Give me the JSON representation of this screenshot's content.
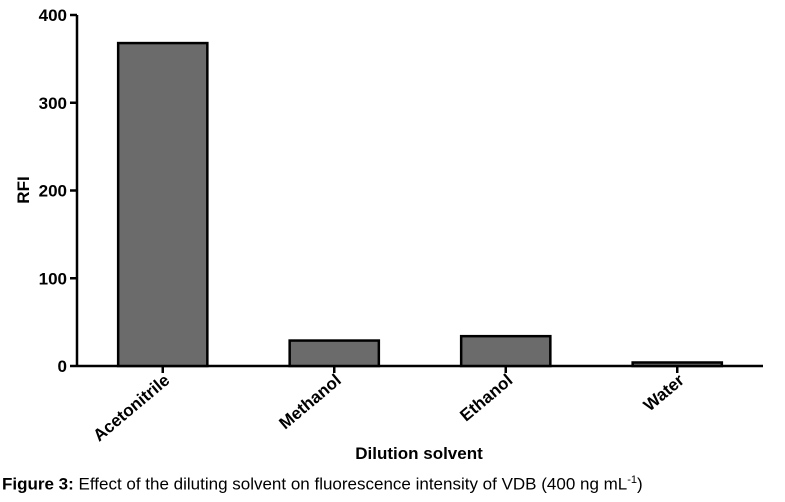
{
  "chart_data": {
    "type": "bar",
    "categories": [
      "Acetonitrile",
      "Methanol",
      "Ethanol",
      "Water"
    ],
    "values": [
      368,
      29,
      34,
      4
    ],
    "xlabel": "Dilution solvent",
    "ylabel": "RFI",
    "ylim": [
      0,
      400
    ],
    "yticks": [
      0,
      100,
      200,
      300,
      400
    ],
    "grid": false,
    "bar_color": "#6b6b6b"
  },
  "caption": {
    "label": "Figure 3:",
    "text": " Effect of the diluting solvent on fluorescence intensity of VDB (400 ng mL",
    "superscript": "-1",
    "close": ")"
  }
}
